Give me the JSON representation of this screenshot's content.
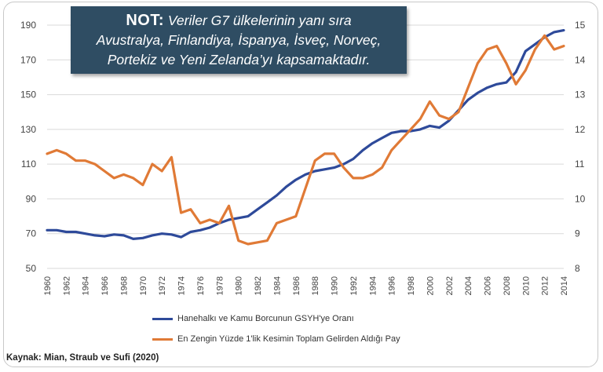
{
  "note": {
    "label": "NOT:",
    "line1": "Veriler G7 ülkelerinin yanı sıra",
    "line2": "Avustralya, Finlandiya, İspanya, İsveç, Norveç,",
    "line3": "Portekiz ve Yeni Zelanda’yı kapsamaktadır."
  },
  "source": {
    "label": "Kaynak:",
    "text": "Mian, Straub ve Sufi (2020)"
  },
  "colors": {
    "series1": "#2e4a9a",
    "series2": "#e07a36",
    "grid": "#d9d9d9",
    "axis_text": "#444444"
  },
  "chart_data": {
    "type": "line",
    "title": "",
    "x": [
      1960,
      1961,
      1962,
      1963,
      1964,
      1965,
      1966,
      1967,
      1968,
      1969,
      1970,
      1971,
      1972,
      1973,
      1974,
      1975,
      1976,
      1977,
      1978,
      1979,
      1980,
      1981,
      1982,
      1983,
      1984,
      1985,
      1986,
      1987,
      1988,
      1989,
      1990,
      1991,
      1992,
      1993,
      1994,
      1995,
      1996,
      1997,
      1998,
      1999,
      2000,
      2001,
      2002,
      2003,
      2004,
      2005,
      2006,
      2007,
      2008,
      2009,
      2010,
      2011,
      2012,
      2013,
      2014
    ],
    "xticks": [
      "1960",
      "1962",
      "1964",
      "1966",
      "1968",
      "1970",
      "1972",
      "1974",
      "1976",
      "1978",
      "1980",
      "1982",
      "1984",
      "1986",
      "1988",
      "1990",
      "1992",
      "1994",
      "1996",
      "1998",
      "2000",
      "2002",
      "2004",
      "2006",
      "2008",
      "2010",
      "2012",
      "2014"
    ],
    "y_left": {
      "min": 50,
      "max": 190,
      "ticks": [
        "50",
        "70",
        "90",
        "110",
        "130",
        "150",
        "170",
        "190"
      ]
    },
    "y_right": {
      "min": 8,
      "max": 15,
      "ticks": [
        "8",
        "9",
        "10",
        "11",
        "12",
        "13",
        "14",
        "15"
      ]
    },
    "legend_placement": "bottom",
    "grid": true,
    "series": [
      {
        "name": "Hanehalkı ve Kamu Borcunun GSYH'ye Oranı",
        "axis": "left",
        "values": [
          72,
          72,
          71,
          71,
          70,
          69,
          68.5,
          69.5,
          69,
          67,
          67.5,
          69,
          70,
          69.5,
          68,
          71,
          72,
          73.5,
          76,
          78,
          79,
          80,
          84,
          88,
          92,
          97,
          101,
          104,
          106,
          107,
          108,
          110,
          113,
          118,
          122,
          125,
          128,
          129,
          129,
          130,
          132,
          131,
          135,
          141,
          147,
          151,
          154,
          156,
          157,
          163,
          175,
          179,
          183,
          186,
          187
        ]
      },
      {
        "name": "En Zengin Yüzde 1'lik Kesimin Toplam Gelirden Aldığı Pay",
        "axis": "right",
        "values": [
          11.3,
          11.4,
          11.3,
          11.1,
          11.1,
          11.0,
          10.8,
          10.6,
          10.7,
          10.6,
          10.4,
          11.0,
          10.8,
          11.2,
          9.6,
          9.7,
          9.3,
          9.4,
          9.3,
          9.8,
          8.8,
          8.7,
          8.75,
          8.8,
          9.3,
          9.4,
          9.5,
          10.3,
          11.1,
          11.3,
          11.3,
          10.9,
          10.6,
          10.6,
          10.7,
          10.9,
          11.4,
          11.7,
          12.0,
          12.3,
          12.8,
          12.4,
          12.3,
          12.5,
          13.2,
          13.9,
          14.3,
          14.4,
          13.9,
          13.3,
          13.7,
          14.3,
          14.7,
          14.3,
          14.4
        ]
      }
    ]
  }
}
